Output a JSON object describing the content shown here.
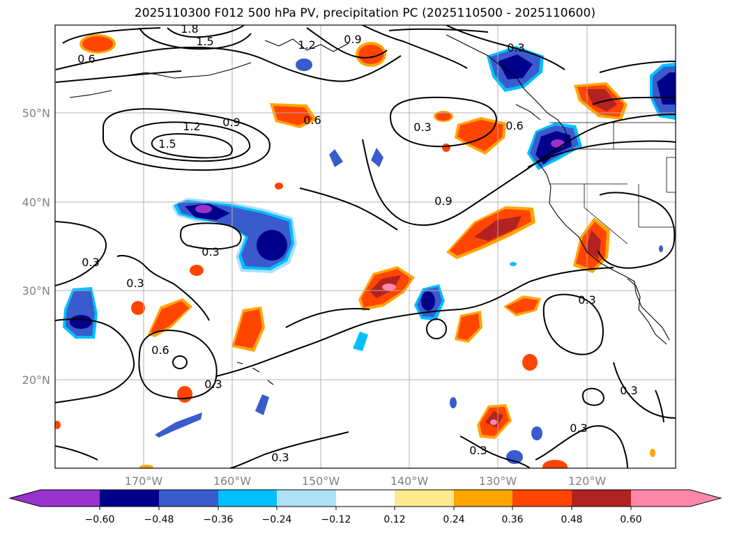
{
  "title": "2025110300 F012 500 hPa PV, precipitation PC (2025110500 - 2025110600)",
  "map": {
    "lat_labels": [
      "50°N",
      "40°N",
      "30°N",
      "20°N"
    ],
    "lon_labels": [
      "170°W",
      "160°W",
      "150°W",
      "140°W",
      "130°W",
      "120°W"
    ],
    "pv_contour_labels": [
      "1.8",
      "1.5",
      "1.2",
      "0.9",
      "0.6",
      "0.3",
      "0.9",
      "1.2",
      "1.5",
      "0.6",
      "0.3",
      "0.6",
      "0.9",
      "0.3",
      "0.3",
      "0.3",
      "0.6",
      "0.3",
      "0.3",
      "0.3",
      "0.3",
      "0.3",
      "0.3",
      "0.3"
    ]
  },
  "colorbar": {
    "levels": [
      "−0.60",
      "−0.48",
      "−0.36",
      "−0.24",
      "−0.12",
      "0.12",
      "0.24",
      "0.36",
      "0.48",
      "0.60"
    ],
    "colors": [
      "#9932cc",
      "#00008b",
      "#3a5bcc",
      "#00bfff",
      "#aee0f8",
      "#ffffff",
      "#ffe98f",
      "#ffa500",
      "#ff4500",
      "#b22222",
      "#ff88aa"
    ]
  }
}
